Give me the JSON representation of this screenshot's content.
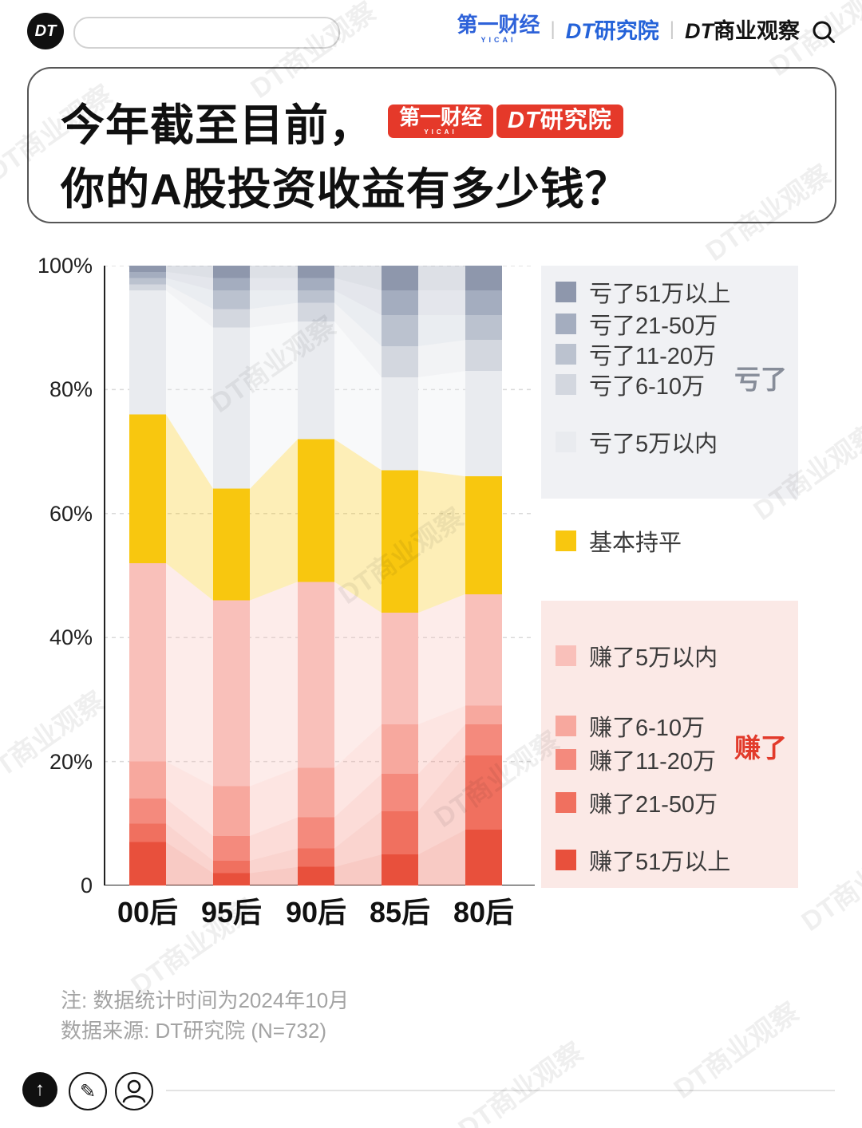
{
  "watermark": "DT商业观察",
  "header": {
    "logo": "DT",
    "search_placeholder": "",
    "brand1": {
      "main": "第一财经",
      "sub": "YICAI"
    },
    "sep": "|",
    "brand2": {
      "dt": "DT",
      "name": "研究院"
    },
    "brand3": {
      "dt": "DT",
      "name": "商业观察"
    }
  },
  "title": {
    "line1": "今年截至目前，",
    "line2": "你的A股投资收益有多少钱？",
    "badge1": {
      "main": "第一财经",
      "sub": "YICAI"
    },
    "badge2": {
      "dt": "DT",
      "name": "研究院"
    }
  },
  "chart_data": {
    "type": "bar",
    "stacked": true,
    "title": "今年截至目前，你的A股投资收益有多少钱？",
    "categories": [
      "00后",
      "95后",
      "90后",
      "85后",
      "80后"
    ],
    "unit": "%",
    "ylim": [
      0,
      100
    ],
    "y_ticks": [
      "100%",
      "80%",
      "60%",
      "40%",
      "20%",
      "0"
    ],
    "grid": "dashed-horizontal",
    "legend_position": "right",
    "series": [
      {
        "name": "赚了51万以上",
        "group": "赚了",
        "color": "#e8503c",
        "values": [
          7,
          2,
          3,
          5,
          9
        ]
      },
      {
        "name": "赚了21-50万",
        "group": "赚了",
        "color": "#f0705f",
        "values": [
          3,
          2,
          3,
          7,
          12
        ]
      },
      {
        "name": "赚了11-20万",
        "group": "赚了",
        "color": "#f48a7d",
        "values": [
          4,
          4,
          5,
          6,
          5
        ]
      },
      {
        "name": "赚了6-10万",
        "group": "赚了",
        "color": "#f7a89e",
        "values": [
          6,
          8,
          8,
          8,
          3
        ]
      },
      {
        "name": "赚了5万以内",
        "group": "赚了",
        "color": "#f9c0ba",
        "values": [
          32,
          30,
          30,
          18,
          18
        ]
      },
      {
        "name": "基本持平",
        "group": "持平",
        "color": "#f8c70f",
        "values": [
          24,
          18,
          23,
          23,
          19
        ]
      },
      {
        "name": "亏了5万以内",
        "group": "亏了",
        "color": "#e9ebef",
        "values": [
          20,
          26,
          19,
          15,
          17
        ]
      },
      {
        "name": "亏了6-10万",
        "group": "亏了",
        "color": "#d3d7df",
        "values": [
          1,
          3,
          3,
          5,
          5
        ]
      },
      {
        "name": "亏了11-20万",
        "group": "亏了",
        "color": "#bbc2cf",
        "values": [
          1,
          3,
          2,
          5,
          4
        ]
      },
      {
        "name": "亏了21-50万",
        "group": "亏了",
        "color": "#a4adbf",
        "values": [
          1,
          2,
          2,
          4,
          4
        ]
      },
      {
        "name": "亏了51万以上",
        "group": "亏了",
        "color": "#8e97ac",
        "values": [
          1,
          2,
          2,
          4,
          4
        ]
      }
    ]
  },
  "legend": {
    "loss_group": {
      "label": "亏了",
      "items": [
        {
          "label": "亏了51万以上",
          "color": "#8e97ac"
        },
        {
          "label": "亏了21-50万",
          "color": "#a4adbf"
        },
        {
          "label": "亏了11-20万",
          "color": "#bbc2cf"
        },
        {
          "label": "亏了6-10万",
          "color": "#d3d7df"
        },
        {
          "label": "亏了5万以内",
          "color": "#e9ebef"
        }
      ]
    },
    "neutral": {
      "label": "基本持平",
      "color": "#f8c70f"
    },
    "gain_group": {
      "label": "赚了",
      "items": [
        {
          "label": "赚了5万以内",
          "color": "#f9c0ba"
        },
        {
          "label": "赚了6-10万",
          "color": "#f7a89e"
        },
        {
          "label": "赚了11-20万",
          "color": "#f48a7d"
        },
        {
          "label": "赚了21-50万",
          "color": "#f0705f"
        },
        {
          "label": "赚了51万以上",
          "color": "#e8503c"
        }
      ]
    }
  },
  "notes": {
    "line1": "注: 数据统计时间为2024年10月",
    "line2": "数据来源: DT研究院 (N=732)"
  },
  "icons": {
    "up": "↑",
    "pencil": "✎"
  }
}
